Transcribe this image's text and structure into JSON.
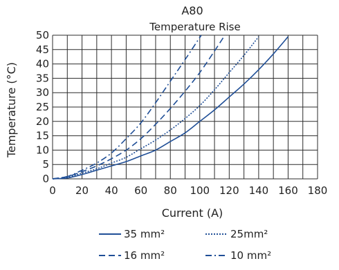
{
  "chart_data": {
    "type": "line",
    "title": "A80",
    "subtitle": "Temperature Rise",
    "xlabel": "Current (A)",
    "ylabel": "Temperature (°C)",
    "xlim": [
      0,
      180
    ],
    "ylim": [
      0,
      50
    ],
    "xticks": [
      "0",
      "20",
      "40",
      "60",
      "80",
      "100",
      "120",
      "140",
      "160",
      "180"
    ],
    "yticks": [
      "0",
      "5",
      "10",
      "15",
      "20",
      "25",
      "30",
      "35",
      "40",
      "45",
      "50"
    ],
    "grid": true,
    "legend_position": "bottom",
    "color": "#1f4e96",
    "series": [
      {
        "name": "35 mm²",
        "style": "solid",
        "x": [
          0,
          10,
          20,
          30,
          40,
          50,
          60,
          70,
          80,
          90,
          100,
          110,
          120,
          130,
          140,
          150,
          160
        ],
        "y": [
          0,
          0.3,
          1.5,
          3,
          4.5,
          6,
          8,
          10,
          13,
          16,
          20,
          24,
          28.5,
          33,
          38,
          43.5,
          49.5
        ]
      },
      {
        "name": "25mm²",
        "style": "dotted",
        "x": [
          0,
          10,
          20,
          30,
          40,
          50,
          60,
          70,
          80,
          90,
          100,
          110,
          120,
          130,
          140
        ],
        "y": [
          0,
          0.5,
          2,
          3.5,
          5.5,
          7.5,
          10.5,
          13.5,
          17,
          21,
          25.5,
          31,
          37,
          43,
          49.5
        ]
      },
      {
        "name": "16 mm²",
        "style": "dashed",
        "x": [
          0,
          10,
          20,
          30,
          40,
          50,
          60,
          70,
          80,
          90,
          100,
          110,
          117
        ],
        "y": [
          0,
          0.8,
          2.5,
          4.5,
          7,
          10,
          14,
          19,
          24.5,
          30.5,
          37,
          44.5,
          50
        ]
      },
      {
        "name": "10 mm²",
        "style": "dashdot",
        "x": [
          0,
          10,
          20,
          30,
          40,
          50,
          60,
          70,
          80,
          90,
          101
        ],
        "y": [
          0,
          0.8,
          3,
          5.5,
          9,
          14,
          19.5,
          26.5,
          34,
          41.5,
          50
        ]
      }
    ]
  }
}
